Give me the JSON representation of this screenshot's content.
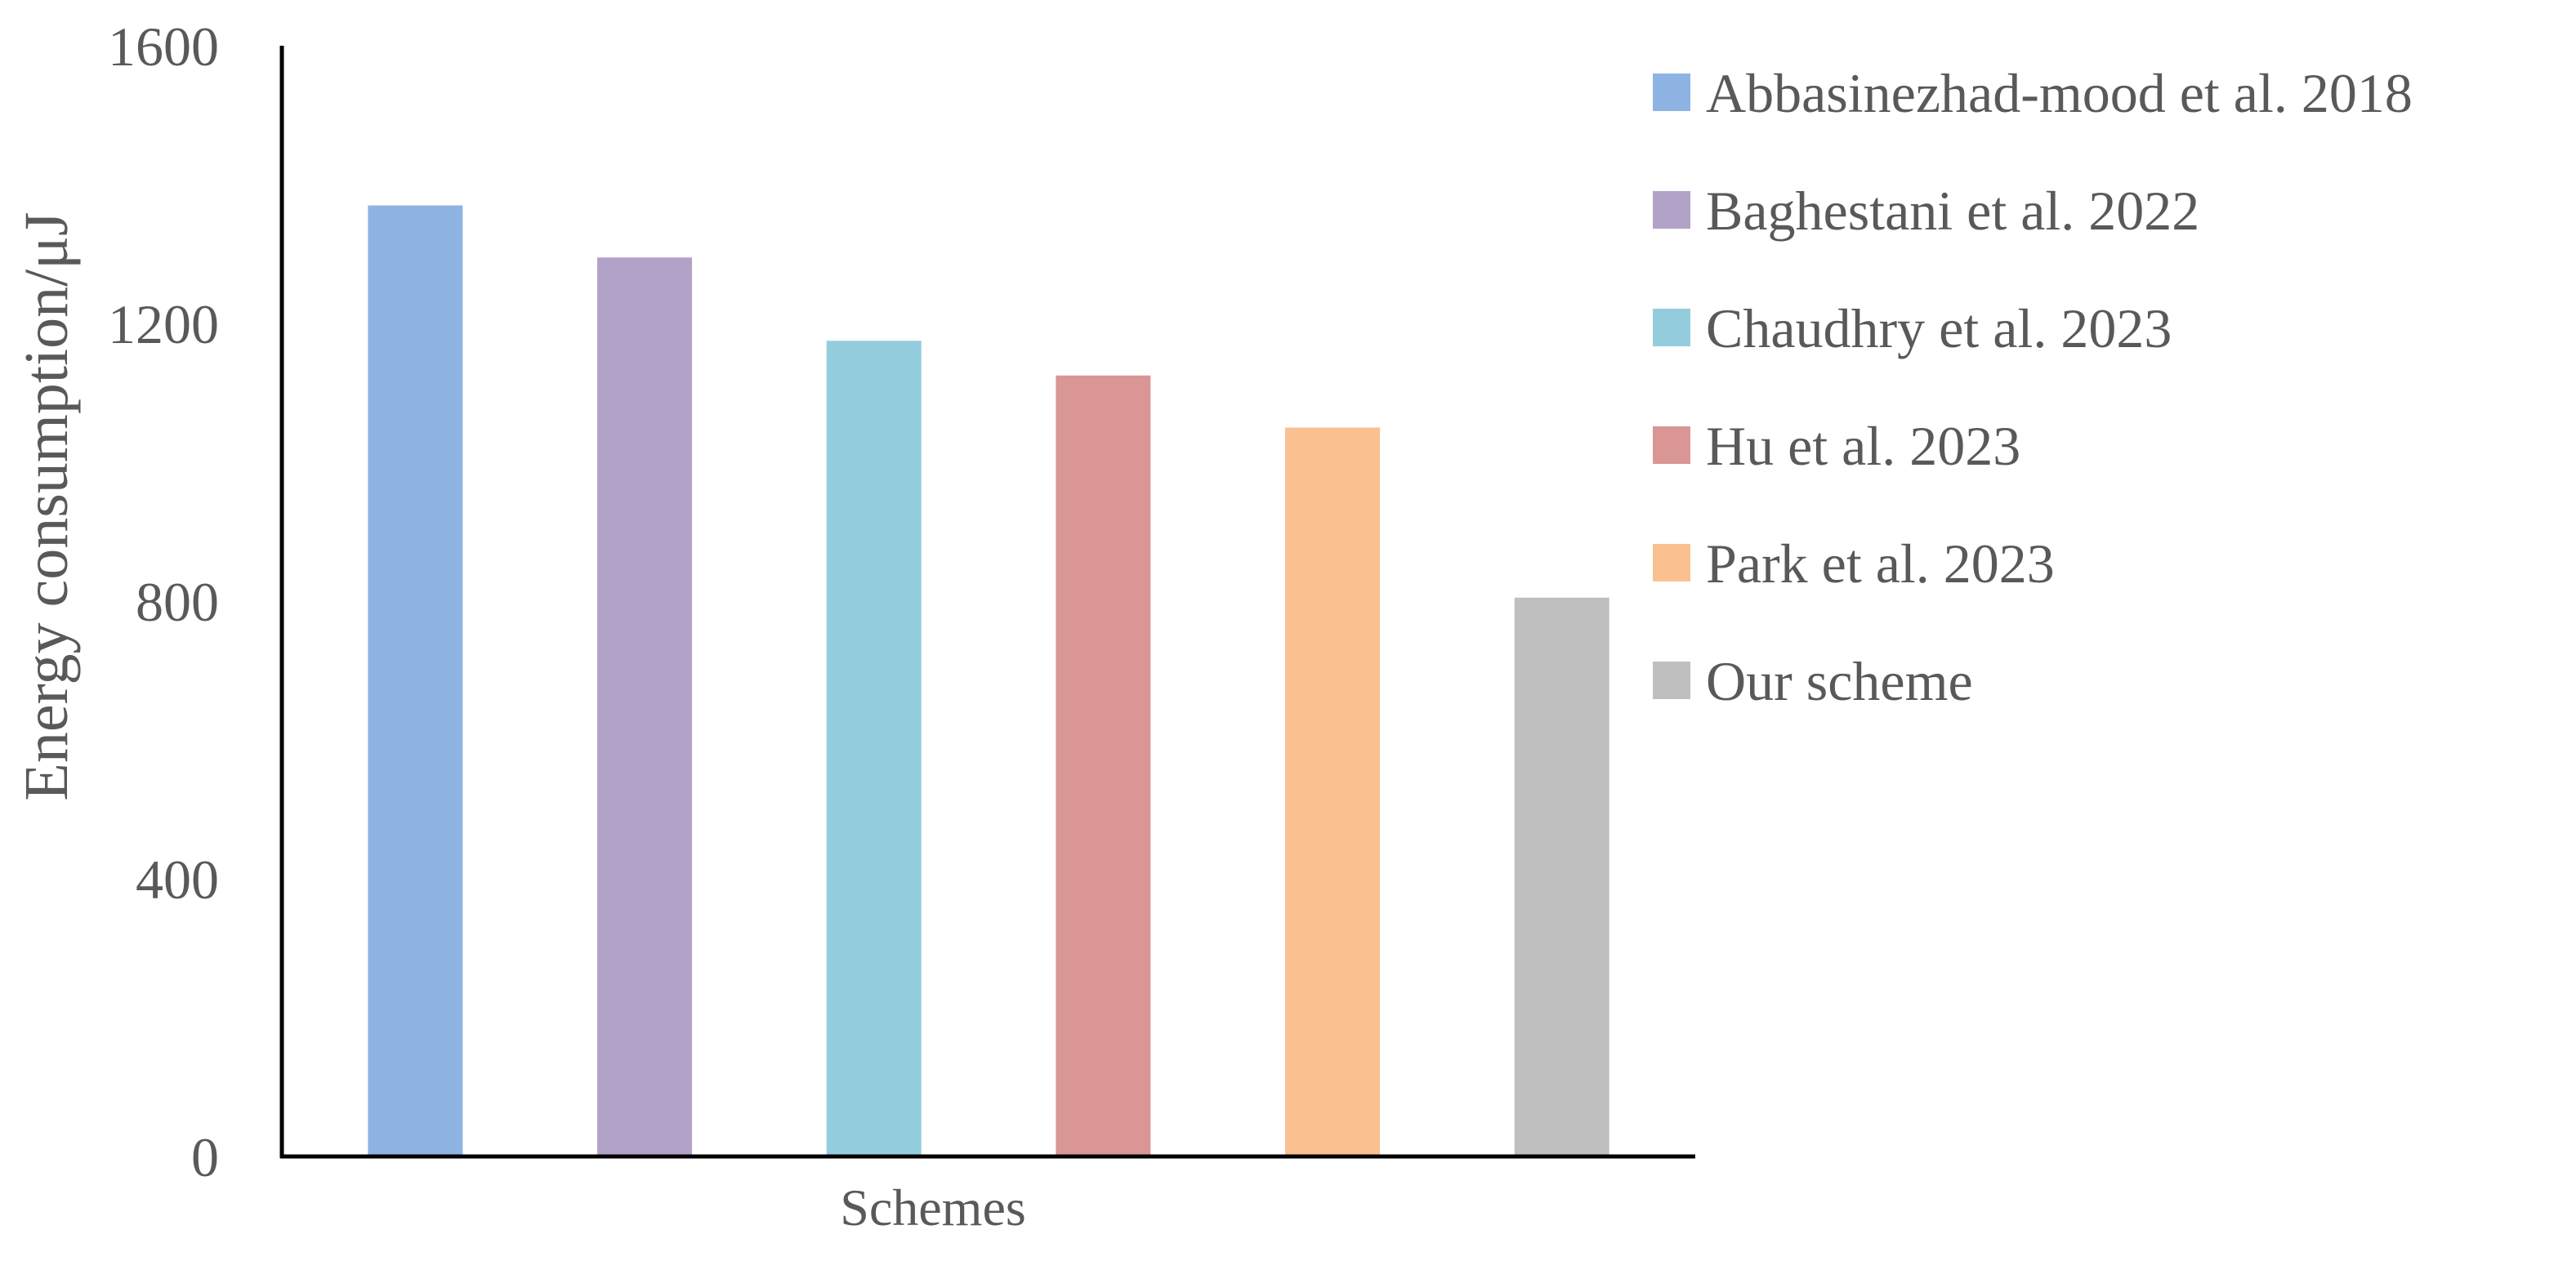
{
  "chart_data": {
    "type": "bar",
    "title": "",
    "xlabel": "Schemes",
    "ylabel": "Energy consumption/μJ",
    "ylim": [
      0,
      1600
    ],
    "yticks": [
      0,
      400,
      800,
      1200,
      1600
    ],
    "grid": false,
    "legend_position": "right",
    "series": [
      {
        "name": "Abbasinezhad-mood et al. 2018",
        "value": 1370,
        "color": "#8EB4E3"
      },
      {
        "name": "Baghestani et al. 2022",
        "value": 1295,
        "color": "#B3A2C7"
      },
      {
        "name": "Chaudhry et al. 2023",
        "value": 1175,
        "color": "#93CDDD"
      },
      {
        "name": "Hu et al. 2023",
        "value": 1125,
        "color": "#D99694"
      },
      {
        "name": "Park et al. 2023",
        "value": 1050,
        "color": "#FAC090"
      },
      {
        "name": "Our scheme",
        "value": 805,
        "color": "#BFBFBF"
      }
    ]
  }
}
